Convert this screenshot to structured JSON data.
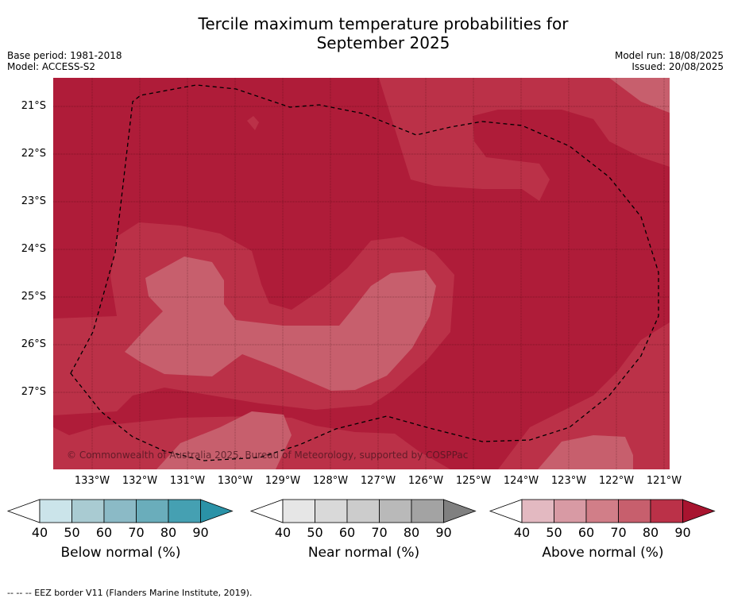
{
  "title_line1": "Tercile maximum temperature probabilities for",
  "title_line2": "September 2025",
  "base_period": "Base period: 1981-2018",
  "model": "Model: ACCESS-S2",
  "model_run": "Model run: 18/08/2025",
  "issued": "Issued: 20/08/2025",
  "copyright": "© Commonwealth of Australia 2025, Bureau of Meteorology, supported by COSPPac",
  "footnote": "--  --  -- EEZ border V11 (Flanders Marine Institute, 2019).",
  "latitude_labels": [
    "21°S",
    "22°S",
    "23°S",
    "24°S",
    "25°S",
    "26°S",
    "27°S"
  ],
  "longitude_labels": [
    "133°W",
    "132°W",
    "131°W",
    "130°W",
    "129°W",
    "128°W",
    "127°W",
    "126°W",
    "125°W",
    "124°W",
    "123°W",
    "122°W",
    "121°W"
  ],
  "colorbars": [
    {
      "label": "Below normal (%)",
      "ticks": [
        "40",
        "50",
        "60",
        "70",
        "80",
        "90"
      ],
      "colors": [
        "#ffffff",
        "#cbe4ea",
        "#a9cbd2",
        "#8bbac6",
        "#6aadbb",
        "#45a0b2",
        "#2a92a7"
      ]
    },
    {
      "label": "Near normal (%)",
      "ticks": [
        "40",
        "50",
        "60",
        "70",
        "80",
        "90"
      ],
      "colors": [
        "#ffffff",
        "#e6e6e6",
        "#d9d9d9",
        "#cccccc",
        "#b9b9b9",
        "#a3a3a3",
        "#808080"
      ]
    },
    {
      "label": "Above normal (%)",
      "ticks": [
        "40",
        "50",
        "60",
        "70",
        "80",
        "90"
      ],
      "colors": [
        "#ffffff",
        "#e3b9c1",
        "#d89aa4",
        "#d17e88",
        "#c75f6d",
        "#bb3148",
        "#a8142f"
      ]
    }
  ],
  "map_colors": {
    "prob_60_70": "#c75f6d",
    "prob_70_80": "#bb3148",
    "prob_80_90": "#af1c39"
  }
}
